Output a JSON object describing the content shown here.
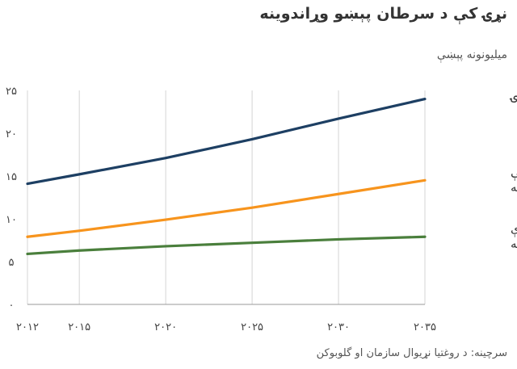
{
  "chart_data": {
    "type": "line",
    "title": "نړۍ کې د سرطان پېښو وړاندوینه",
    "ylabel": "میلیونونه پېښې",
    "source": "سرچینه: د روغتیا نړیوال سازمان او گلوبوکن",
    "xlim": [
      2012,
      2035
    ],
    "ylim": [
      0,
      25
    ],
    "x_ticks": [
      "۲۰۱۲",
      "۲۰۱۵",
      "۲۰۲۰",
      "۲۰۲۵",
      "۲۰۳۰",
      "۲۰۳۵"
    ],
    "x_tick_values": [
      2012,
      2015,
      2020,
      2025,
      2030,
      2035
    ],
    "y_ticks": [
      "۰",
      "۵",
      "۱۰",
      "۱۵",
      "۲۰",
      "۲۵"
    ],
    "y_tick_values": [
      0,
      5,
      10,
      15,
      20,
      25
    ],
    "grid": "vertical",
    "series": [
      {
        "name": "نړۍ",
        "color": "#1d3f63",
        "label_lines": [
          "نړۍ"
        ],
        "x": [
          2012,
          2015,
          2020,
          2025,
          2030,
          2035
        ],
        "y": [
          14.1,
          15.2,
          17.1,
          19.3,
          21.7,
          24.0
        ]
      },
      {
        "name": "وروسته پاتې هېوادونه",
        "color": "#f7941d",
        "label_lines": [
          "وروسته پاتې",
          "هېوادونه"
        ],
        "x": [
          2012,
          2015,
          2020,
          2025,
          2030,
          2035
        ],
        "y": [
          7.9,
          8.6,
          9.9,
          11.3,
          12.9,
          14.5
        ]
      },
      {
        "name": "مخ پر ودې هېوادونه",
        "color": "#4a7f3c",
        "label_lines": [
          "مخ پر ودې",
          "هېوادونه"
        ],
        "x": [
          2012,
          2015,
          2020,
          2025,
          2030,
          2035
        ],
        "y": [
          5.9,
          6.3,
          6.8,
          7.2,
          7.6,
          7.9
        ]
      }
    ]
  }
}
